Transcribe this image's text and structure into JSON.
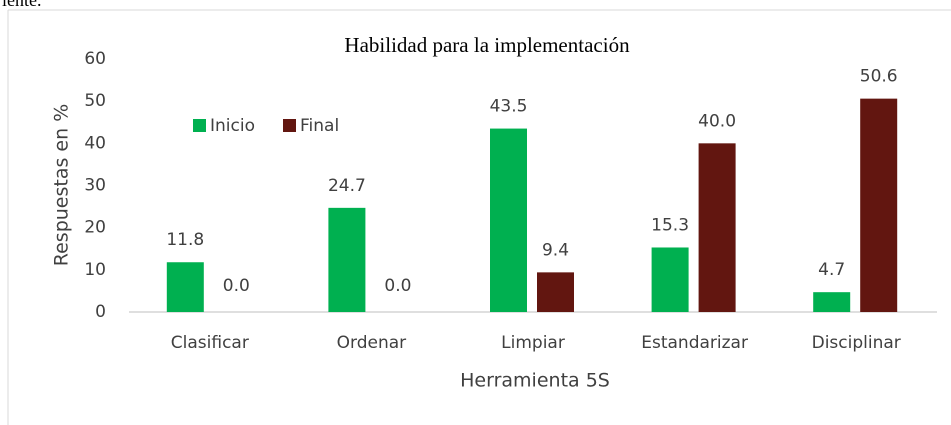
{
  "page_text": "iente.",
  "chart_data": {
    "type": "bar",
    "title": "Habilidad para la implementación",
    "x_label": "Herramienta 5S",
    "y_label": "Respuestas en %",
    "categories": [
      "Clasificar",
      "Ordenar",
      "Limpiar",
      "Estandarizar",
      "Disciplinar"
    ],
    "series": [
      {
        "name": "Inicio",
        "color": "#00b050",
        "values": [
          11.8,
          24.7,
          43.5,
          15.3,
          4.7
        ],
        "value_labels": [
          "11.8",
          "24.7",
          "43.5",
          "15.3",
          "4.7"
        ]
      },
      {
        "name": "Final",
        "color": "#621610",
        "values": [
          0,
          0,
          9.4,
          40,
          50.6
        ],
        "value_labels": [
          "0.0",
          "0.0",
          "9.4",
          "40.0",
          "50.6"
        ]
      }
    ],
    "ylim": [
      0,
      60
    ],
    "yticks": [
      0,
      10,
      20,
      30,
      40,
      50,
      60
    ],
    "grid": false,
    "legend": "top-left"
  }
}
